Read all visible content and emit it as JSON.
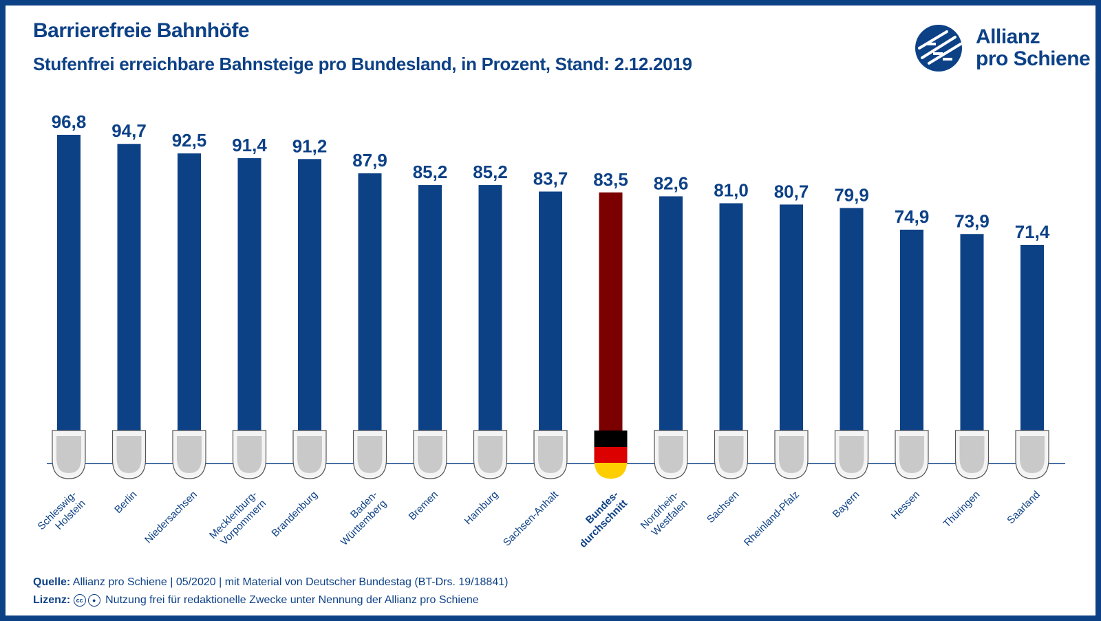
{
  "header": {
    "title": "Barrierefreie Bahnhöfe",
    "subtitle": "Stufenfrei erreichbare Bahnsteige pro Bundesland, in Prozent, Stand: 2.12.2019"
  },
  "logo": {
    "line1": "Allianz",
    "line2": "pro Schiene"
  },
  "colors": {
    "bar": "#0d4186",
    "highlight_bar": "#7b0000",
    "text": "#0d4186"
  },
  "chart_data": {
    "type": "bar",
    "categories": [
      "Schleswig-Holstein",
      "Berlin",
      "Niedersachsen",
      "Mecklenburg-Vorpommern",
      "Brandenburg",
      "Baden-Württemberg",
      "Bremen",
      "Hamburg",
      "Sachsen-Anhalt",
      "Bundesdurchschnitt",
      "Nordrhein-Westfalen",
      "Sachsen",
      "Rheinland-Pfalz",
      "Bayern",
      "Hessen",
      "Thüringen",
      "Saarland"
    ],
    "category_labels": [
      [
        "Schleswig-",
        "Holstein"
      ],
      [
        "Berlin"
      ],
      [
        "Niedersachsen"
      ],
      [
        "Mecklenburg-",
        "Vorpommern"
      ],
      [
        "Brandenburg"
      ],
      [
        "Baden-",
        "Württemberg"
      ],
      [
        "Bremen"
      ],
      [
        "Hamburg"
      ],
      [
        "Sachsen-Anhalt"
      ],
      [
        "Bundes-",
        "durchschnitt"
      ],
      [
        "Nordrhein-",
        "Westfalen"
      ],
      [
        "Sachsen"
      ],
      [
        "Rheinland-Pfalz"
      ],
      [
        "Bayern"
      ],
      [
        "Hessen"
      ],
      [
        "Thüringen"
      ],
      [
        "Saarland"
      ]
    ],
    "values": [
      96.8,
      94.7,
      92.5,
      91.4,
      91.2,
      87.9,
      85.2,
      85.2,
      83.7,
      83.5,
      82.6,
      81.0,
      80.7,
      79.9,
      74.9,
      73.9,
      71.4
    ],
    "value_labels": [
      "96,8",
      "94,7",
      "92,5",
      "91,4",
      "91,2",
      "87,9",
      "85,2",
      "85,2",
      "83,7",
      "83,5",
      "82,6",
      "81,0",
      "80,7",
      "79,9",
      "74,9",
      "73,9",
      "71,4"
    ],
    "highlight_index": 9,
    "title": "Barrierefreie Bahnhöfe",
    "xlabel": "",
    "ylabel": "",
    "grid": false,
    "legend": "none"
  },
  "footer": {
    "source_label": "Quelle:",
    "source_text": "Allianz pro Schiene | 05/2020 | mit Material von Deutscher Bundestag (BT-Drs. 19/18841)",
    "license_label": "Lizenz:",
    "license_text": "Nutzung frei für redaktionelle Zwecke unter Nennung der Allianz pro Schiene"
  }
}
